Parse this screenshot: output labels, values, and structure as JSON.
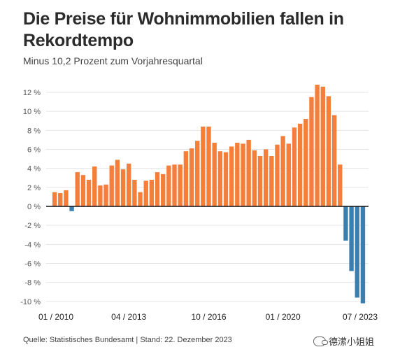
{
  "title": "Die Preise für Wohnimmobilien fallen in Rekordtempo",
  "subtitle": "Minus 10,2 Prozent zum Vorjahresquartal",
  "source": "Quelle: Statistisches Bundesamt | Stand: 22. Dezember 2023",
  "watermark": "德潆小姐姐",
  "colors": {
    "positive": "#f47f3b",
    "negative": "#3a7fb0",
    "grid": "#e4e4e4",
    "zero_line": "#111111"
  },
  "chart_data": {
    "type": "bar",
    "ylim": [
      -10,
      13
    ],
    "yticks": [
      {
        "value": 12,
        "label": "12 %"
      },
      {
        "value": 10,
        "label": "10 %"
      },
      {
        "value": 8,
        "label": "8 %"
      },
      {
        "value": 6,
        "label": "6 %"
      },
      {
        "value": 4,
        "label": "4 %"
      },
      {
        "value": 2,
        "label": "2 %"
      },
      {
        "value": 0,
        "label": "0 %"
      },
      {
        "value": -2,
        "label": "-2 %"
      },
      {
        "value": -4,
        "label": "-4 %"
      },
      {
        "value": -6,
        "label": "-6 %"
      },
      {
        "value": -8,
        "label": "-8 %"
      },
      {
        "value": -10,
        "label": "-10 %"
      }
    ],
    "xticks": [
      {
        "index": 0,
        "label": "01 / 2010"
      },
      {
        "index": 13,
        "label": "04 / 2013"
      },
      {
        "index": 27,
        "label": "10 / 2016"
      },
      {
        "index": 40,
        "label": "01 / 2020"
      },
      {
        "index": 54,
        "label": "07 / 2023"
      }
    ],
    "grid": true,
    "values": [
      1.5,
      1.4,
      1.7,
      -0.5,
      3.6,
      3.3,
      2.8,
      4.2,
      2.2,
      2.3,
      4.3,
      4.9,
      3.9,
      4.5,
      2.8,
      1.5,
      2.7,
      2.8,
      3.6,
      3.4,
      4.3,
      4.4,
      4.4,
      5.8,
      6.1,
      6.9,
      8.4,
      8.4,
      6.7,
      5.8,
      5.7,
      6.3,
      6.7,
      6.6,
      7.0,
      5.9,
      5.3,
      6.0,
      5.3,
      6.5,
      7.4,
      6.6,
      8.3,
      8.7,
      9.2,
      11.5,
      12.8,
      12.6,
      11.6,
      9.6,
      4.4,
      -3.6,
      -6.8,
      -9.6,
      -10.2
    ]
  }
}
